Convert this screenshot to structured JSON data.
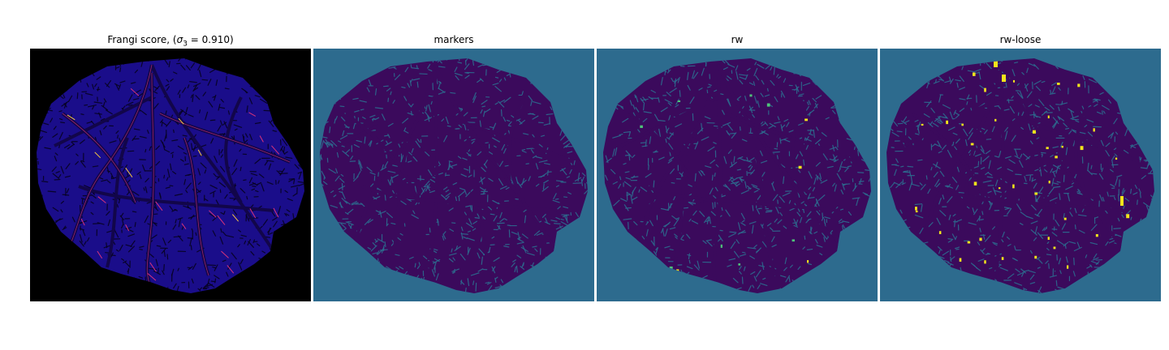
{
  "panels": [
    {
      "title_main": "Frangi score, (",
      "title_sigma": "σ",
      "title_sub": "3",
      "title_tail": " = 0.910)"
    },
    {
      "title": "markers"
    },
    {
      "title": "rw"
    },
    {
      "title": "rw-loose"
    }
  ],
  "colors": {
    "frangi_bg": "#000000",
    "frangi_tissue": "#1a0d8a",
    "frangi_vessel": "#12064a",
    "frangi_highlight": "#d9337a",
    "frangi_hot": "#f5c542",
    "viridis_bg": "#2d6b8e",
    "viridis_dark": "#3b0a5c",
    "viridis_yellow": "#f2e51b",
    "viridis_green": "#4fc47a"
  }
}
